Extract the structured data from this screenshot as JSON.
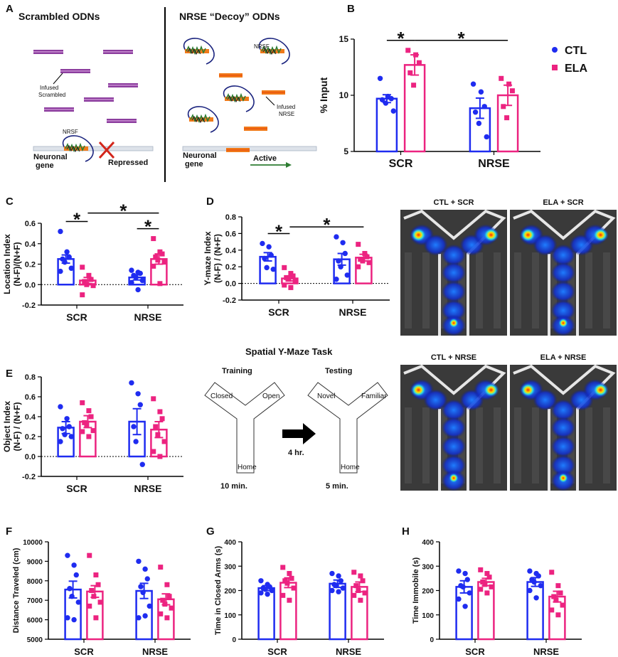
{
  "panel_letters": [
    "A",
    "B",
    "C",
    "D",
    "E",
    "F",
    "G",
    "H"
  ],
  "panel_a": {
    "left_title": "Scrambled ODNs",
    "right_title": "NRSE “Decoy” ODNs",
    "left_infused": [
      "Infused",
      "Scrambled"
    ],
    "left_nrsf": "NRSF",
    "left_gene": [
      "Neuronal",
      "gene"
    ],
    "left_state": "Repressed",
    "right_nrsf": "NRSF",
    "right_infused": [
      "Infused",
      "NRSE"
    ],
    "right_gene": [
      "Neuronal",
      "gene"
    ],
    "right_state": "Active"
  },
  "maze": {
    "title": "Spatial Y-Maze Task",
    "training": {
      "title": "Training",
      "arms": [
        "Closed",
        "Open",
        "Home"
      ],
      "duration": "10 min."
    },
    "interval": "4 hr.",
    "testing": {
      "title": "Testing",
      "arms": [
        "Novel",
        "Familiar",
        "Home"
      ],
      "duration": "5 min."
    }
  },
  "heatmaps": [
    "CTL + SCR",
    "ELA + SCR",
    "CTL + NRSE",
    "ELA + NRSE"
  ],
  "chart_data": [
    {
      "type": "bar",
      "categories": [
        "SCR",
        "NRSE"
      ],
      "ylabel": [
        "% Input"
      ],
      "ylim": [
        5,
        15
      ],
      "yticks": [
        5,
        10,
        15
      ],
      "legend": "right",
      "series": [
        {
          "name": "CTL",
          "color": "#1f2cf0",
          "marker": "circle",
          "values": [
            9.7,
            8.85
          ],
          "errors": [
            0.35,
            0.9
          ],
          "points": [
            [
              11.5,
              9.9,
              9.7,
              9.6,
              9.3,
              8.6
            ],
            [
              11.0,
              10.3,
              9.0,
              8.5,
              7.5,
              6.3
            ]
          ]
        },
        {
          "name": "ELA",
          "color": "#ec2380",
          "marker": "square",
          "values": [
            12.7,
            10.0
          ],
          "errors": [
            0.9,
            0.9
          ],
          "points": [
            [
              14.0,
              13.6,
              12.9,
              12.0,
              10.9
            ],
            [
              11.5,
              11.0,
              10.4,
              9.0,
              8.0
            ]
          ]
        }
      ],
      "brackets": [
        {
          "text": "*",
          "from": [
            0,
            0
          ],
          "to": [
            1,
            0
          ]
        },
        {
          "text": "*",
          "from": [
            1,
            0
          ],
          "to": [
            1,
            1
          ]
        }
      ]
    },
    {
      "type": "bar",
      "categories": [
        "SCR",
        "NRSE"
      ],
      "ylabel": [
        "Location Index",
        "(N-F)/(N+F)"
      ],
      "ylim": [
        -0.2,
        0.6
      ],
      "yticks": [
        -0.2,
        {
          "value": 0,
          "label": "0.0"
        },
        0.2,
        0.4,
        0.6
      ],
      "reference_line": 0,
      "series": [
        {
          "color": "#1f2cf0",
          "marker": "circle",
          "values": [
            0.25,
            0.07
          ],
          "errors": [
            0.04,
            0.025
          ],
          "points": [
            [
              0.52,
              0.32,
              0.27,
              0.25,
              0.22,
              0.16,
              0.13
            ],
            [
              0.14,
              0.12,
              0.11,
              0.09,
              0.07,
              0.04,
              0.02,
              -0.05
            ]
          ]
        },
        {
          "color": "#ec2380",
          "marker": "square",
          "values": [
            0.04,
            0.25
          ],
          "errors": [
            0.03,
            0.05
          ],
          "points": [
            [
              0.17,
              0.09,
              0.05,
              0.03,
              0.0,
              -0.01,
              -0.1
            ],
            [
              0.45,
              0.32,
              0.3,
              0.27,
              0.24,
              0.22,
              0.18,
              0.01
            ]
          ]
        }
      ],
      "brackets": [
        {
          "text": "*",
          "from": [
            0,
            0
          ],
          "to": [
            1,
            0
          ]
        },
        {
          "text": "*",
          "from": [
            0,
            1
          ],
          "to": [
            1,
            1
          ]
        },
        {
          "text": "*",
          "from": [
            1,
            0
          ],
          "to": [
            1,
            1
          ]
        }
      ]
    },
    {
      "type": "bar",
      "categories": [
        "SCR",
        "NRSE"
      ],
      "ylabel": [
        "Y-maze Index",
        "(N-F) / (N+F)"
      ],
      "ylim": [
        -0.2,
        0.8
      ],
      "yticks": [
        -0.2,
        {
          "value": 0,
          "label": "0.0"
        },
        0.2,
        0.4,
        0.6,
        0.8
      ],
      "reference_line": 0,
      "series": [
        {
          "color": "#1f2cf0",
          "marker": "circle",
          "values": [
            0.32,
            0.29
          ],
          "errors": [
            0.05,
            0.07
          ],
          "points": [
            [
              0.48,
              0.44,
              0.34,
              0.3,
              0.19,
              0.17
            ],
            [
              0.56,
              0.49,
              0.36,
              0.27,
              0.2,
              0.1,
              0.05
            ]
          ]
        },
        {
          "color": "#ec2380",
          "marker": "square",
          "values": [
            0.06,
            0.31
          ],
          "errors": [
            0.03,
            0.04
          ],
          "points": [
            [
              0.19,
              0.12,
              0.09,
              0.07,
              0.05,
              0.03,
              -0.02,
              -0.05
            ],
            [
              0.47,
              0.36,
              0.32,
              0.29,
              0.27,
              0.25,
              0.2
            ]
          ]
        }
      ],
      "brackets": [
        {
          "text": "*",
          "from": [
            0,
            0
          ],
          "to": [
            1,
            0
          ]
        },
        {
          "text": "*",
          "from": [
            1,
            0
          ],
          "to": [
            1,
            1
          ]
        }
      ]
    },
    {
      "type": "bar",
      "categories": [
        "SCR",
        "NRSE"
      ],
      "ylabel": [
        "Object Index",
        "(N-F) / (N+F)"
      ],
      "ylim": [
        -0.2,
        0.8
      ],
      "yticks": [
        -0.2,
        {
          "value": 0,
          "label": "0.0"
        },
        0.2,
        0.4,
        0.6,
        0.8
      ],
      "reference_line": 0,
      "series": [
        {
          "color": "#1f2cf0",
          "marker": "circle",
          "values": [
            0.29,
            0.35
          ],
          "errors": [
            0.06,
            0.13
          ],
          "points": [
            [
              0.5,
              0.38,
              0.3,
              0.28,
              0.22,
              0.2,
              0.15
            ],
            [
              0.74,
              0.63,
              0.52,
              0.3,
              0.15,
              -0.08
            ]
          ]
        },
        {
          "color": "#ec2380",
          "marker": "square",
          "values": [
            0.35,
            0.27
          ],
          "errors": [
            0.06,
            0.08
          ],
          "points": [
            [
              0.54,
              0.46,
              0.4,
              0.34,
              0.32,
              0.26,
              0.25,
              0.2
            ],
            [
              0.58,
              0.45,
              0.38,
              0.3,
              0.22,
              0.15,
              0.05,
              0.0
            ]
          ]
        }
      ]
    },
    {
      "type": "bar",
      "categories": [
        "SCR",
        "NRSE"
      ],
      "ylabel": [
        "Distance Traveled (cm)"
      ],
      "ylim": [
        5000,
        10000
      ],
      "yticks": [
        5000,
        6000,
        7000,
        8000,
        9000,
        10000
      ],
      "series": [
        {
          "color": "#1f2cf0",
          "marker": "circle",
          "values": [
            7550,
            7480
          ],
          "errors": [
            430,
            390
          ],
          "points": [
            [
              9300,
              8800,
              8300,
              7600,
              7200,
              6900,
              6100,
              6000
            ],
            [
              9000,
              8600,
              8100,
              7700,
              7400,
              6700,
              6100,
              6200
            ]
          ]
        },
        {
          "color": "#ec2380",
          "marker": "square",
          "values": [
            7450,
            7050
          ],
          "errors": [
            300,
            280
          ],
          "points": [
            [
              9300,
              8300,
              7800,
              7500,
              7200,
              6900,
              6700,
              6100
            ],
            [
              8700,
              7800,
              7200,
              7000,
              6800,
              6600,
              6300,
              6100
            ]
          ]
        }
      ]
    },
    {
      "type": "bar",
      "categories": [
        "SCR",
        "NRSE"
      ],
      "ylabel": [
        "Time in Closed Arms (s)"
      ],
      "ylim": [
        0,
        400
      ],
      "yticks": [
        0,
        100,
        200,
        300,
        400
      ],
      "series": [
        {
          "color": "#1f2cf0",
          "marker": "circle",
          "values": [
            210,
            228
          ],
          "errors": [
            10,
            15
          ],
          "points": [
            [
              240,
              225,
              215,
              210,
              205,
              200,
              190,
              185
            ],
            [
              270,
              260,
              240,
              225,
              220,
              210,
              200,
              195
            ]
          ]
        },
        {
          "color": "#ec2380",
          "marker": "square",
          "values": [
            232,
            215
          ],
          "errors": [
            20,
            20
          ],
          "points": [
            [
              295,
              270,
              250,
              240,
              230,
              210,
              180,
              160
            ],
            [
              275,
              260,
              240,
              220,
              200,
              190,
              180,
              160
            ]
          ]
        }
      ]
    },
    {
      "type": "bar",
      "categories": [
        "SCR",
        "NRSE"
      ],
      "ylabel": [
        "Time Immobile (s)"
      ],
      "ylim": [
        0,
        400
      ],
      "yticks": [
        0,
        100,
        200,
        300,
        400
      ],
      "series": [
        {
          "color": "#1f2cf0",
          "marker": "circle",
          "values": [
            215,
            235
          ],
          "errors": [
            25,
            18
          ],
          "points": [
            [
              280,
              270,
              245,
              220,
              215,
              190,
              165,
              135
            ],
            [
              280,
              270,
              260,
              245,
              235,
              220,
              200,
              170
            ]
          ]
        },
        {
          "color": "#ec2380",
          "marker": "square",
          "values": [
            235,
            175
          ],
          "errors": [
            15,
            22
          ],
          "points": [
            [
              285,
              270,
              255,
              235,
              225,
              215,
              205,
              190
            ],
            [
              275,
              220,
              190,
              175,
              160,
              140,
              120,
              100
            ]
          ]
        }
      ]
    }
  ]
}
